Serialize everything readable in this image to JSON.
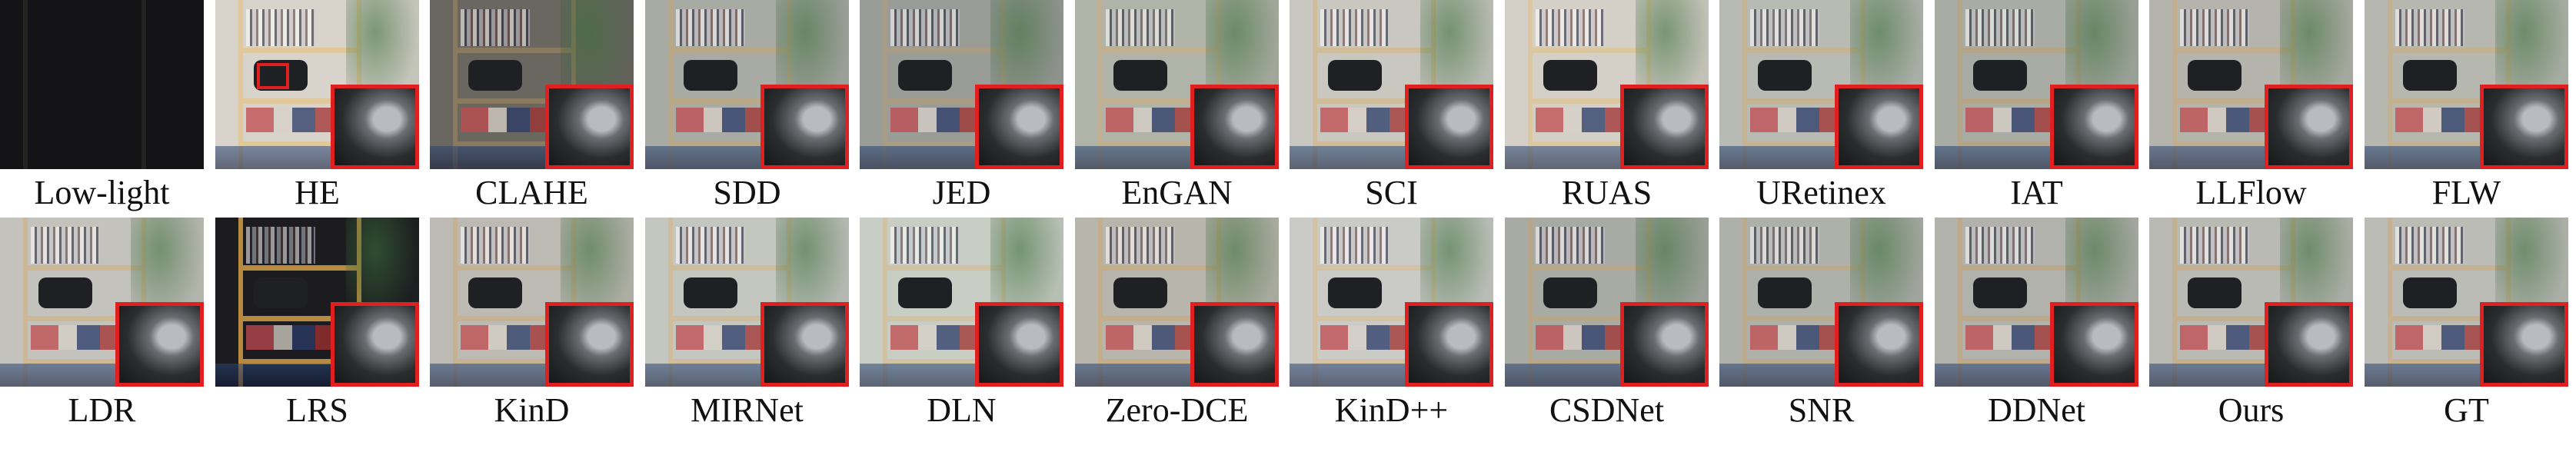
{
  "figure": {
    "rows": [
      [
        {
          "label": "Low-light",
          "tone": "#141416",
          "shelf": "#1c1b1a",
          "zoom": false
        },
        {
          "label": "HE",
          "tone": "#d8d4cc",
          "shelf": "#e0c89a",
          "zoom": true,
          "marker": true
        },
        {
          "label": "CLAHE",
          "tone": "#6a6660",
          "shelf": "#8a7a60",
          "zoom": true
        },
        {
          "label": "SDD",
          "tone": "#a8aaa4",
          "shelf": "#b8a888",
          "zoom": true
        },
        {
          "label": "JED",
          "tone": "#9a9c98",
          "shelf": "#a89c84",
          "zoom": true
        },
        {
          "label": "EnGAN",
          "tone": "#b0b4a8",
          "shelf": "#c0b090",
          "zoom": true
        },
        {
          "label": "SCI",
          "tone": "#c8c8c0",
          "shelf": "#d0bc98",
          "zoom": true
        },
        {
          "label": "RUAS",
          "tone": "#d4d0c8",
          "shelf": "#dcc8a0",
          "zoom": true
        },
        {
          "label": "URetinex",
          "tone": "#b8bab4",
          "shelf": "#c4b494",
          "zoom": true
        },
        {
          "label": "IAT",
          "tone": "#a8aca4",
          "shelf": "#b4a488",
          "zoom": true
        },
        {
          "label": "LLFlow",
          "tone": "#b4b4ac",
          "shelf": "#c0ae8e",
          "zoom": true
        },
        {
          "label": "FLW",
          "tone": "#b6b8b0",
          "shelf": "#c2b292",
          "zoom": true
        }
      ],
      [
        {
          "label": "LDR",
          "tone": "#c4c2bc",
          "shelf": "#cdb896",
          "zoom": true
        },
        {
          "label": "LRS",
          "tone": "#1c1c20",
          "shelf": "#b88a40",
          "zoom": true
        },
        {
          "label": "KinD",
          "tone": "#bcbab2",
          "shelf": "#c6b292",
          "zoom": true
        },
        {
          "label": "MIRNet",
          "tone": "#c4c6c0",
          "shelf": "#cfbc9c",
          "zoom": true
        },
        {
          "label": "DLN",
          "tone": "#c8cec4",
          "shelf": "#d0c2a2",
          "zoom": true
        },
        {
          "label": "Zero-DCE",
          "tone": "#b8b6ac",
          "shelf": "#c4ae8a",
          "zoom": true
        },
        {
          "label": "KinD++",
          "tone": "#cacbc6",
          "shelf": "#d4c2a2",
          "zoom": true
        },
        {
          "label": "CSDNet",
          "tone": "#a8aaa4",
          "shelf": "#b8a688",
          "zoom": true
        },
        {
          "label": "SNR",
          "tone": "#aeb0aa",
          "shelf": "#bcaa8c",
          "zoom": true
        },
        {
          "label": "DDNet",
          "tone": "#b2b2ac",
          "shelf": "#bea88a",
          "zoom": true
        },
        {
          "label": "Ours",
          "tone": "#babab4",
          "shelf": "#c4b090",
          "zoom": true
        },
        {
          "label": "GT",
          "tone": "#bcbcb6",
          "shelf": "#c6b292",
          "zoom": true
        }
      ]
    ],
    "highlight_color": "#e02020"
  }
}
